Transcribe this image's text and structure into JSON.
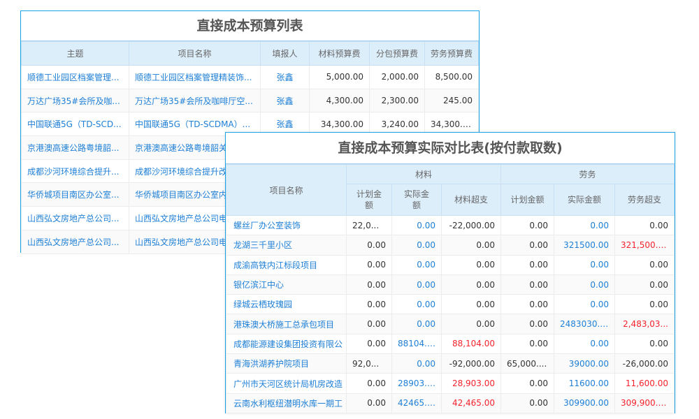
{
  "table1": {
    "title": "直接成本预算列表",
    "headers": [
      "主题",
      "项目名称",
      "填报人",
      "材料预算费",
      "分包预算费",
      "劳务预算费"
    ],
    "rows": [
      [
        "顺德工业园区档案管理...",
        "顺德工业园区档案管理精装饰...",
        "张鑫",
        "5,000.00",
        "2,000.00",
        "8,500.00"
      ],
      [
        "万达广场35#会所及咖...",
        "万达广场35#会所及咖啡厅空...",
        "张鑫",
        "4,300.00",
        "2,300.00",
        "245.00"
      ],
      [
        "中国联通5G（TD-SCD...",
        "中国联通5G（TD-SCDMA）...",
        "张鑫",
        "34,300.00",
        "3,240.00",
        "34,300.00"
      ],
      [
        "京港澳高速公路粤境韶...",
        "京港澳高速公路粤境韶关",
        "",
        "",
        "",
        ""
      ],
      [
        "成都沙河环境综合提升...",
        "成都沙河环境综合提升改",
        "",
        "",
        "",
        ""
      ],
      [
        "华侨城项目南区办公室...",
        "华侨城项目南区办公室内",
        "",
        "",
        "",
        ""
      ],
      [
        "山西弘文房地产总公司...",
        "山西弘文房地产总公司电",
        "",
        "",
        "",
        ""
      ],
      [
        "山西弘文房地产总公司...",
        "山西弘文房地产总公司电",
        "",
        "",
        "",
        ""
      ]
    ]
  },
  "table2": {
    "title": "直接成本预算实际对比表(按付款取数)",
    "name_header": "项目名称",
    "groups": [
      "材料",
      "劳务"
    ],
    "subheaders": [
      "计划金额",
      "实际金额",
      "材料超支",
      "计划金额",
      "实际金额",
      "劳务超支"
    ],
    "rows": [
      {
        "name": "螺丝厂办公室装饰",
        "v": [
          "22,0...",
          "0.00",
          "-22,000.00",
          "0.00",
          "0.00",
          "0.00"
        ],
        "red": []
      },
      {
        "name": "龙湖三千里小区",
        "v": [
          "0.00",
          "0.00",
          "0.00",
          "0.00",
          "321500.00",
          "321,500.00"
        ],
        "red": [
          5
        ]
      },
      {
        "name": "成渝高铁内江标段项目",
        "v": [
          "0.00",
          "0.00",
          "0.00",
          "0.00",
          "0.00",
          "0.00"
        ],
        "red": []
      },
      {
        "name": "银亿滨江中心",
        "v": [
          "0.00",
          "0.00",
          "0.00",
          "0.00",
          "0.00",
          "0.00"
        ],
        "red": []
      },
      {
        "name": "绿城云栖玫瑰园",
        "v": [
          "0.00",
          "0.00",
          "0.00",
          "0.00",
          "0.00",
          "0.00"
        ],
        "red": []
      },
      {
        "name": "港珠澳大桥施工总承包项目",
        "v": [
          "0.00",
          "0.00",
          "0.00",
          "0.00",
          "2483030.00",
          "2,483,03..."
        ],
        "red": [
          5
        ]
      },
      {
        "name": "成都能源建设集团投资有限公",
        "v": [
          "0.00",
          "88104.00",
          "88,104.00",
          "0.00",
          "0.00",
          "0.00"
        ],
        "red": [
          2
        ]
      },
      {
        "name": "青海洪湖养护院项目",
        "v": [
          "92,0...",
          "0.00",
          "-92,000.00",
          "65,000....",
          "39000.00",
          "-26,000.00"
        ],
        "red": []
      },
      {
        "name": "广州市天河区统计局机房改造",
        "v": [
          "0.00",
          "28903.00",
          "28,903.00",
          "0.00",
          "11600.00",
          "11,600.00"
        ],
        "red": [
          2,
          5
        ]
      },
      {
        "name": "云南水利枢纽潜明水库一期工",
        "v": [
          "0.00",
          "42465.00",
          "42,465.00",
          "0.00",
          "309900.00",
          "309,900.00"
        ],
        "red": [
          2,
          5
        ]
      }
    ]
  },
  "colors": {
    "link": "#1e7fd6",
    "overrun": "#f5222d",
    "header_bg": "#ddeefb",
    "border": "#1aa3e8"
  }
}
